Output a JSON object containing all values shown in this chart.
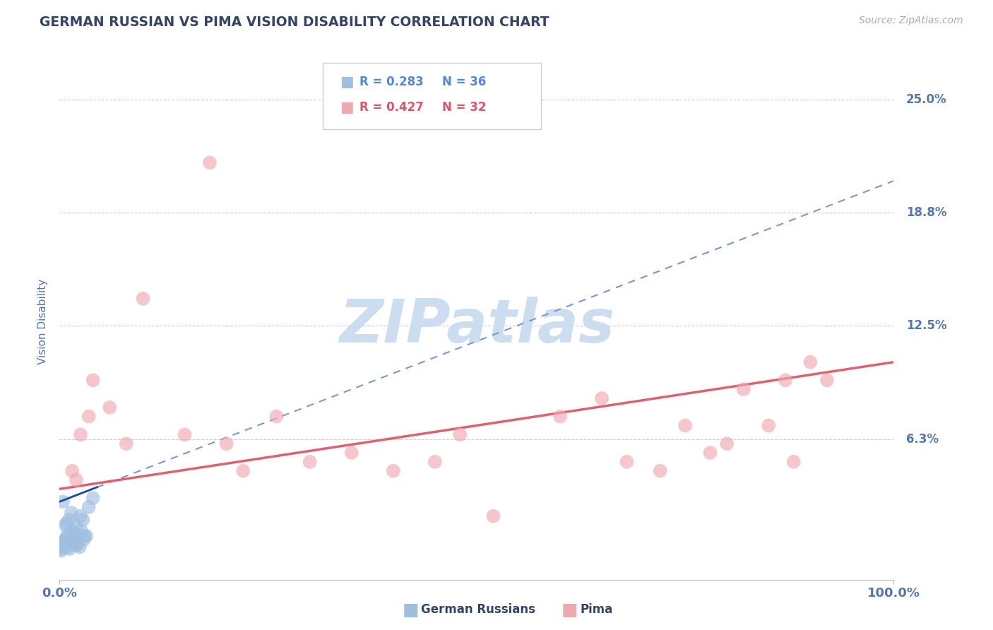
{
  "title": "GERMAN RUSSIAN VS PIMA VISION DISABILITY CORRELATION CHART",
  "source_text": "Source: ZipAtlas.com",
  "ylabel": "Vision Disability",
  "xlim": [
    0,
    100
  ],
  "ylim": [
    -1.5,
    27
  ],
  "yticks": [
    0,
    6.25,
    12.5,
    18.75,
    25.0
  ],
  "ytick_labels": [
    "",
    "6.3%",
    "12.5%",
    "18.8%",
    "25.0%"
  ],
  "xtick_labels": [
    "0.0%",
    "100.0%"
  ],
  "background_color": "#ffffff",
  "grid_color": "#ccccdd",
  "watermark": "ZIPatlas",
  "watermark_color": "#ccddf0",
  "legend_R1": "R = 0.283",
  "legend_N1": "N = 36",
  "legend_R2": "R = 0.427",
  "legend_N2": "N = 32",
  "blue_color": "#a0bfe0",
  "pink_color": "#f0a8b0",
  "blue_line_color": "#7799cc",
  "pink_line_color": "#e06070",
  "blue_solid_color": "#2244aa",
  "title_color": "#334466",
  "axis_label_color": "#5577aa",
  "legend_text_blue": "#5588cc",
  "legend_text_pink": "#dd5566",
  "german_russian_x": [
    0.3,
    0.5,
    0.8,
    1.0,
    1.2,
    1.5,
    1.8,
    2.0,
    2.2,
    2.5,
    2.8,
    3.0,
    3.5,
    4.0,
    0.2,
    0.4,
    0.6,
    0.7,
    0.9,
    1.1,
    1.3,
    1.4,
    1.6,
    1.7,
    1.9,
    2.1,
    2.4,
    2.6,
    2.9,
    3.2,
    0.1,
    0.5,
    0.8,
    1.0,
    1.5,
    2.0
  ],
  "german_russian_y": [
    0.3,
    0.5,
    0.8,
    1.0,
    0.2,
    1.2,
    0.4,
    1.5,
    0.6,
    2.0,
    1.8,
    0.9,
    2.5,
    3.0,
    0.1,
    2.8,
    0.7,
    1.5,
    0.3,
    1.8,
    0.5,
    2.2,
    0.8,
    1.0,
    0.6,
    0.4,
    0.3,
    1.2,
    0.7,
    0.9,
    0.2,
    0.4,
    1.6,
    0.8,
    1.0,
    0.6
  ],
  "pima_x": [
    1.5,
    2.5,
    4.0,
    6.0,
    10.0,
    15.0,
    18.0,
    22.0,
    26.0,
    30.0,
    35.0,
    40.0,
    48.0,
    52.0,
    60.0,
    65.0,
    68.0,
    72.0,
    75.0,
    80.0,
    82.0,
    85.0,
    87.0,
    90.0,
    92.0,
    2.0,
    3.5,
    8.0,
    20.0,
    45.0,
    78.0,
    88.0
  ],
  "pima_y": [
    4.5,
    6.5,
    9.5,
    8.0,
    14.0,
    6.5,
    21.5,
    4.5,
    7.5,
    5.0,
    5.5,
    4.5,
    6.5,
    2.0,
    7.5,
    8.5,
    5.0,
    4.5,
    7.0,
    6.0,
    9.0,
    7.0,
    9.5,
    10.5,
    9.5,
    4.0,
    7.5,
    6.0,
    6.0,
    5.0,
    5.5,
    5.0
  ],
  "gr_trend_x0": 0,
  "gr_trend_x1": 100,
  "gr_trend_y0": 2.8,
  "gr_trend_y1": 20.5,
  "gr_solid_x0": 0,
  "gr_solid_x1": 4.5,
  "gr_solid_y0": 2.8,
  "gr_solid_y1": 3.6,
  "pima_trend_x0": 0,
  "pima_trend_x1": 100,
  "pima_trend_y0": 3.5,
  "pima_trend_y1": 10.5
}
